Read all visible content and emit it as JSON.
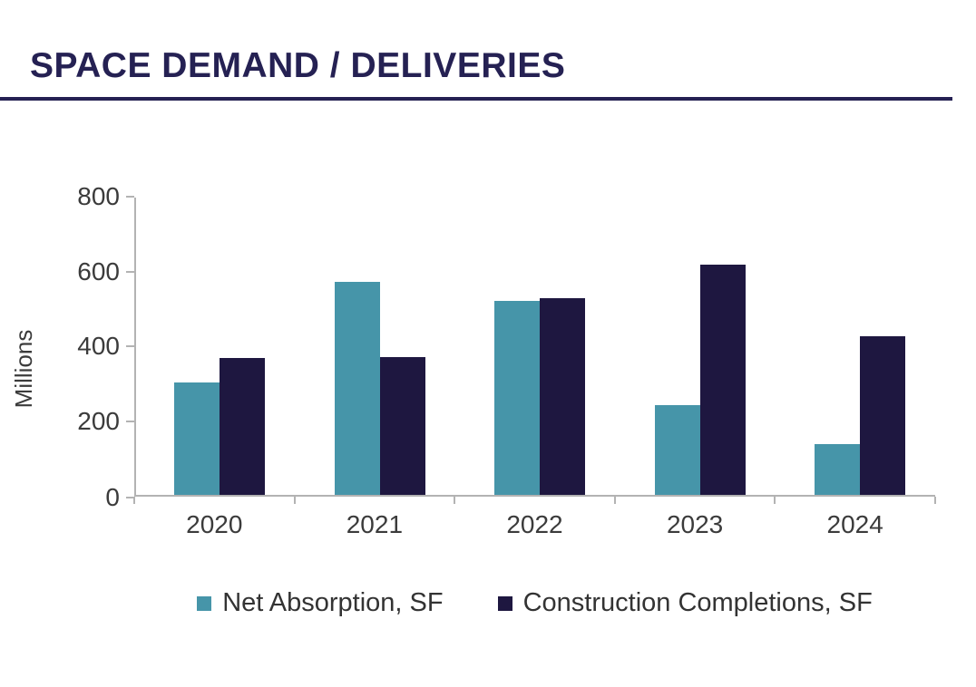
{
  "header": {
    "title": "SPACE DEMAND / DELIVERIES",
    "accent_color": "#252153"
  },
  "chart_data": {
    "type": "bar",
    "title": "SPACE DEMAND / DELIVERIES",
    "categories": [
      "2020",
      "2021",
      "2022",
      "2023",
      "2024"
    ],
    "series": [
      {
        "name": "Net Absorption, SF",
        "color": "#4695A9",
        "values": [
          300,
          570,
          518,
          240,
          135
        ]
      },
      {
        "name": "Construction Completions, SF",
        "color": "#1E1740",
        "values": [
          365,
          368,
          525,
          615,
          425
        ]
      }
    ],
    "xlabel": "",
    "ylabel": "Millions",
    "ylim": [
      0,
      800
    ],
    "yticks": [
      0,
      200,
      400,
      600,
      800
    ],
    "grid": false,
    "legend_position": "bottom",
    "axis_color": "#B3B3B3",
    "tick_label_color": "#3B3B3B"
  }
}
